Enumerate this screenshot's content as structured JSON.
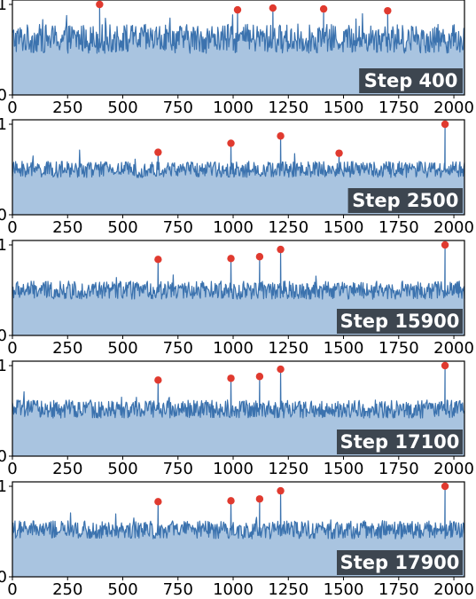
{
  "chart_data": [
    {
      "type": "area",
      "label": "Step 400",
      "xlim": [
        0,
        2048
      ],
      "ylim": [
        0,
        1
      ],
      "xticks": [
        0,
        250,
        500,
        750,
        1000,
        1250,
        1500,
        1750,
        2000
      ],
      "xtick_labels": [
        "0",
        "250",
        "500",
        "750",
        "1000",
        "1250",
        "1500",
        "1750",
        "2000"
      ],
      "yticks": [
        0,
        1
      ],
      "ytick_labels": [
        "0",
        "1"
      ],
      "baseline_mean": 0.62,
      "baseline_noise": 0.16,
      "peaks": [
        {
          "x": 395,
          "y": 1.0
        },
        {
          "x": 1020,
          "y": 0.94
        },
        {
          "x": 1180,
          "y": 0.96
        },
        {
          "x": 1410,
          "y": 0.95
        },
        {
          "x": 1700,
          "y": 0.93
        }
      ],
      "series_color": "#3b72ae",
      "fill_color": "#a9c4e0",
      "peak_color": "#e03a2f"
    },
    {
      "type": "area",
      "label": "Step 2500",
      "xlim": [
        0,
        2048
      ],
      "ylim": [
        0,
        1
      ],
      "xticks": [
        0,
        250,
        500,
        750,
        1000,
        1250,
        1500,
        1750,
        2000
      ],
      "xtick_labels": [
        "0",
        "250",
        "500",
        "750",
        "1000",
        "1250",
        "1500",
        "1750",
        "2000"
      ],
      "yticks": [
        0,
        1
      ],
      "ytick_labels": [
        "0",
        "1"
      ],
      "baseline_mean": 0.5,
      "baseline_noise": 0.09,
      "peaks": [
        {
          "x": 660,
          "y": 0.69
        },
        {
          "x": 990,
          "y": 0.79
        },
        {
          "x": 1215,
          "y": 0.87
        },
        {
          "x": 1480,
          "y": 0.68
        },
        {
          "x": 1960,
          "y": 1.0
        }
      ],
      "series_color": "#3b72ae",
      "fill_color": "#a9c4e0",
      "peak_color": "#e03a2f"
    },
    {
      "type": "area",
      "label": "Step 15900",
      "xlim": [
        0,
        2048
      ],
      "ylim": [
        0,
        1
      ],
      "xticks": [
        0,
        250,
        500,
        750,
        1000,
        1250,
        1500,
        1750,
        2000
      ],
      "xtick_labels": [
        "0",
        "250",
        "500",
        "750",
        "1000",
        "1250",
        "1500",
        "1750",
        "2000"
      ],
      "yticks": [
        0,
        1
      ],
      "ytick_labels": [
        "0",
        "1"
      ],
      "baseline_mean": 0.5,
      "baseline_noise": 0.1,
      "peaks": [
        {
          "x": 660,
          "y": 0.84
        },
        {
          "x": 990,
          "y": 0.85
        },
        {
          "x": 1120,
          "y": 0.87
        },
        {
          "x": 1215,
          "y": 0.95
        },
        {
          "x": 1960,
          "y": 1.0
        }
      ],
      "series_color": "#3b72ae",
      "fill_color": "#a9c4e0",
      "peak_color": "#e03a2f"
    },
    {
      "type": "area",
      "label": "Step 17100",
      "xlim": [
        0,
        2048
      ],
      "ylim": [
        0,
        1
      ],
      "xticks": [
        0,
        250,
        500,
        750,
        1000,
        1250,
        1500,
        1750,
        2000
      ],
      "xtick_labels": [
        "0",
        "250",
        "500",
        "750",
        "1000",
        "1250",
        "1500",
        "1750",
        "2000"
      ],
      "yticks": [
        0,
        1
      ],
      "ytick_labels": [
        "0",
        "1"
      ],
      "baseline_mean": 0.52,
      "baseline_noise": 0.1,
      "peaks": [
        {
          "x": 660,
          "y": 0.84
        },
        {
          "x": 990,
          "y": 0.86
        },
        {
          "x": 1120,
          "y": 0.88
        },
        {
          "x": 1215,
          "y": 0.96
        },
        {
          "x": 1960,
          "y": 1.0
        }
      ],
      "series_color": "#3b72ae",
      "fill_color": "#a9c4e0",
      "peak_color": "#e03a2f"
    },
    {
      "type": "area",
      "label": "Step 17900",
      "xlim": [
        0,
        2048
      ],
      "ylim": [
        0,
        1
      ],
      "xticks": [
        0,
        250,
        500,
        750,
        1000,
        1250,
        1500,
        1750,
        2000
      ],
      "xtick_labels": [
        "0",
        "250",
        "500",
        "750",
        "1000",
        "1250",
        "1500",
        "1750",
        "2000"
      ],
      "yticks": [
        0,
        1
      ],
      "ytick_labels": [
        "0",
        "1"
      ],
      "baseline_mean": 0.52,
      "baseline_noise": 0.1,
      "peaks": [
        {
          "x": 660,
          "y": 0.83
        },
        {
          "x": 990,
          "y": 0.84
        },
        {
          "x": 1120,
          "y": 0.86
        },
        {
          "x": 1215,
          "y": 0.95
        },
        {
          "x": 1960,
          "y": 1.0
        }
      ],
      "series_color": "#3b72ae",
      "fill_color": "#a9c4e0",
      "peak_color": "#e03a2f"
    }
  ]
}
